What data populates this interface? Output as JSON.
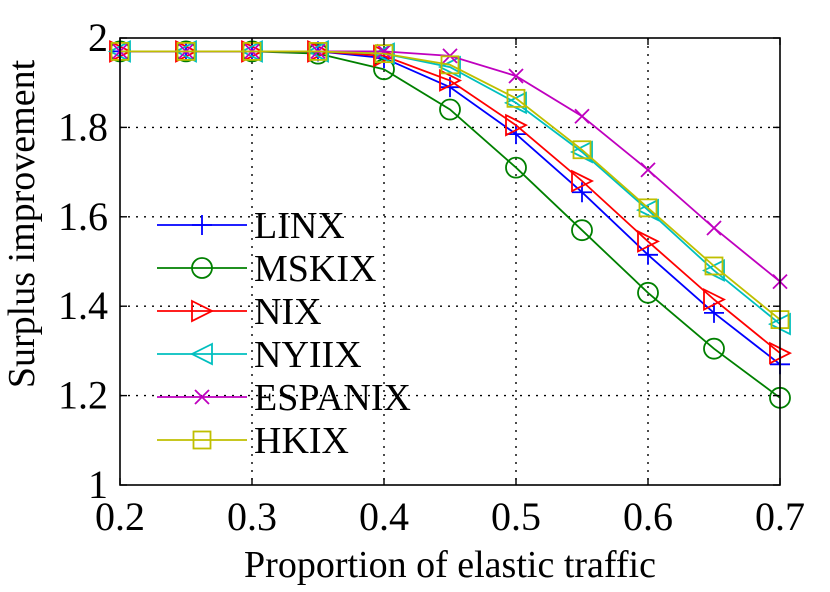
{
  "chart_data": {
    "type": "line",
    "xlabel": "Proportion of elastic traffic",
    "ylabel": "Surplus improvement",
    "xlim": [
      0.2,
      0.7
    ],
    "ylim": [
      1,
      2
    ],
    "xticks": [
      0.2,
      0.3,
      0.4,
      0.5,
      0.6,
      0.7
    ],
    "xtick_labels": [
      "0.2",
      "0.3",
      "0.4",
      "0.5",
      "0.6",
      "0.7"
    ],
    "yticks": [
      1,
      1.2,
      1.4,
      1.6,
      1.8,
      2
    ],
    "ytick_labels": [
      "1",
      "1.2",
      "1.4",
      "1.6",
      "1.8",
      "2"
    ],
    "grid": true,
    "legend_position": "left",
    "x": [
      0.2,
      0.25,
      0.3,
      0.35,
      0.4,
      0.45,
      0.5,
      0.55,
      0.6,
      0.65,
      0.7
    ],
    "series": [
      {
        "name": "LINX",
        "color": "#0000ff",
        "marker": "plus",
        "values": [
          1.97,
          1.97,
          1.97,
          1.97,
          1.955,
          1.89,
          1.785,
          1.655,
          1.515,
          1.385,
          1.27
        ]
      },
      {
        "name": "MSKIX",
        "color": "#008000",
        "marker": "circle",
        "values": [
          1.97,
          1.97,
          1.97,
          1.965,
          1.93,
          1.84,
          1.71,
          1.57,
          1.43,
          1.305,
          1.195
        ]
      },
      {
        "name": "NIX",
        "color": "#ff0000",
        "marker": "triangle-right",
        "values": [
          1.97,
          1.97,
          1.97,
          1.97,
          1.96,
          1.905,
          1.805,
          1.68,
          1.545,
          1.415,
          1.295
        ]
      },
      {
        "name": "NYIIX",
        "color": "#00bfbf",
        "marker": "triangle-left",
        "values": [
          1.97,
          1.97,
          1.97,
          1.97,
          1.965,
          1.935,
          1.855,
          1.745,
          1.615,
          1.48,
          1.36
        ]
      },
      {
        "name": "ESPANIX",
        "color": "#bf00bf",
        "marker": "x",
        "values": [
          1.97,
          1.97,
          1.97,
          1.97,
          1.97,
          1.96,
          1.915,
          1.825,
          1.705,
          1.575,
          1.455
        ]
      },
      {
        "name": "HKIX",
        "color": "#bfbf00",
        "marker": "square",
        "values": [
          1.97,
          1.97,
          1.97,
          1.97,
          1.965,
          1.94,
          1.865,
          1.75,
          1.62,
          1.49,
          1.37
        ]
      }
    ]
  }
}
